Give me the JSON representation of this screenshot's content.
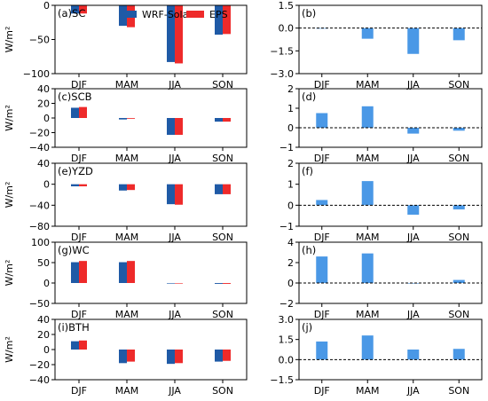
{
  "legend": {
    "items": [
      {
        "name": "WRF-Solar",
        "color": "#1f5aa6"
      },
      {
        "name": "EPS",
        "color": "#ee2a2a"
      }
    ],
    "placement": "top-center of panel (a)"
  },
  "colors": {
    "wrf": "#1f5aa6",
    "eps": "#ee2a2a",
    "diff": "#4a98e6"
  },
  "chart_data": [
    {
      "id": "a",
      "label": "(a)SC",
      "type": "bar",
      "ylabel": "W/m²",
      "categories": [
        "DJF",
        "MAM",
        "JJA",
        "SON"
      ],
      "series": [
        {
          "name": "WRF-Solar",
          "values": [
            -12,
            -30,
            -83,
            -43
          ]
        },
        {
          "name": "EPS",
          "values": [
            -12,
            -32,
            -85,
            -42
          ]
        }
      ],
      "ylim": [
        -100,
        0
      ],
      "yticks": [
        "0",
        "−50",
        "−100"
      ],
      "ytick_values": [
        0,
        -50,
        -100
      ]
    },
    {
      "id": "b",
      "label": "(b)",
      "type": "bar",
      "ylabel": "",
      "categories": [
        "DJF",
        "MAM",
        "JJA",
        "SON"
      ],
      "series": [
        {
          "values": [
            0.0,
            -0.7,
            -1.7,
            -0.8
          ]
        }
      ],
      "ylim": [
        -3.0,
        1.5
      ],
      "yticks": [
        "1.5",
        "0.0",
        "−1.5",
        "−3.0"
      ],
      "ytick_values": [
        1.5,
        0,
        -1.5,
        -3.0
      ],
      "zero_line": true
    },
    {
      "id": "c",
      "label": "(c)SCB",
      "type": "bar",
      "ylabel": "W/m²",
      "categories": [
        "DJF",
        "MAM",
        "JJA",
        "SON"
      ],
      "series": [
        {
          "name": "WRF-Solar",
          "values": [
            14,
            -2,
            -23,
            -5
          ]
        },
        {
          "name": "EPS",
          "values": [
            15,
            -1,
            -23,
            -5
          ]
        }
      ],
      "ylim": [
        -40,
        40
      ],
      "yticks": [
        "40",
        "20",
        "0",
        "−20",
        "−40"
      ],
      "ytick_values": [
        40,
        20,
        0,
        -20,
        -40
      ]
    },
    {
      "id": "d",
      "label": "(d)",
      "type": "bar",
      "ylabel": "",
      "categories": [
        "DJF",
        "MAM",
        "JJA",
        "SON"
      ],
      "series": [
        {
          "values": [
            0.75,
            1.1,
            -0.3,
            -0.15
          ]
        }
      ],
      "ylim": [
        -1,
        2
      ],
      "yticks": [
        "2",
        "1",
        "0",
        "−1"
      ],
      "ytick_values": [
        2,
        1,
        0,
        -1
      ],
      "zero_line": true
    },
    {
      "id": "e",
      "label": "(e)YZD",
      "type": "bar",
      "ylabel": "W/m²",
      "categories": [
        "DJF",
        "MAM",
        "JJA",
        "SON"
      ],
      "series": [
        {
          "name": "WRF-Solar",
          "values": [
            -4,
            -12,
            -38,
            -19
          ]
        },
        {
          "name": "EPS",
          "values": [
            -4,
            -11,
            -39,
            -19
          ]
        }
      ],
      "ylim": [
        -80,
        40
      ],
      "yticks": [
        "40",
        "0",
        "−40",
        "−80"
      ],
      "ytick_values": [
        40,
        0,
        -40,
        -80
      ]
    },
    {
      "id": "f",
      "label": "(f)",
      "type": "bar",
      "ylabel": "",
      "categories": [
        "DJF",
        "MAM",
        "JJA",
        "SON"
      ],
      "series": [
        {
          "values": [
            0.25,
            1.15,
            -0.45,
            -0.2
          ]
        }
      ],
      "ylim": [
        -1,
        2
      ],
      "yticks": [
        "2",
        "1",
        "0",
        "−1"
      ],
      "ytick_values": [
        2,
        1,
        0,
        -1
      ],
      "zero_line": true
    },
    {
      "id": "g",
      "label": "(g)WC",
      "type": "bar",
      "ylabel": "W/m²",
      "categories": [
        "DJF",
        "MAM",
        "JJA",
        "SON"
      ],
      "series": [
        {
          "name": "WRF-Solar",
          "values": [
            51,
            51,
            -1,
            -2
          ]
        },
        {
          "name": "EPS",
          "values": [
            54,
            54,
            -1,
            -2
          ]
        }
      ],
      "ylim": [
        -50,
        100
      ],
      "yticks": [
        "100",
        "50",
        "0",
        "−50"
      ],
      "ytick_values": [
        100,
        50,
        0,
        -50
      ]
    },
    {
      "id": "h",
      "label": "(h)",
      "type": "bar",
      "ylabel": "",
      "categories": [
        "DJF",
        "MAM",
        "JJA",
        "SON"
      ],
      "series": [
        {
          "values": [
            2.6,
            2.9,
            0.0,
            0.3
          ]
        }
      ],
      "ylim": [
        -2,
        4
      ],
      "yticks": [
        "4",
        "2",
        "0",
        "−2"
      ],
      "ytick_values": [
        4,
        2,
        0,
        -2
      ],
      "zero_line": true
    },
    {
      "id": "i",
      "label": "(i)BTH",
      "type": "bar",
      "ylabel": "W/m²",
      "categories": [
        "DJF",
        "MAM",
        "JJA",
        "SON"
      ],
      "series": [
        {
          "name": "WRF-Solar",
          "values": [
            11,
            -18,
            -19,
            -16
          ]
        },
        {
          "name": "EPS",
          "values": [
            12,
            -16,
            -18,
            -15
          ]
        }
      ],
      "ylim": [
        -40,
        40
      ],
      "yticks": [
        "40",
        "20",
        "0",
        "−20",
        "−40"
      ],
      "ytick_values": [
        40,
        20,
        0,
        -20,
        -40
      ]
    },
    {
      "id": "j",
      "label": "(j)",
      "type": "bar",
      "ylabel": "",
      "categories": [
        "DJF",
        "MAM",
        "JJA",
        "SON"
      ],
      "series": [
        {
          "values": [
            1.35,
            1.8,
            0.75,
            0.8
          ]
        }
      ],
      "ylim": [
        -1.5,
        3.0
      ],
      "yticks": [
        "3.0",
        "1.5",
        "0.0",
        "−1.5"
      ],
      "ytick_values": [
        3.0,
        1.5,
        0,
        -1.5
      ],
      "zero_line": true
    }
  ]
}
